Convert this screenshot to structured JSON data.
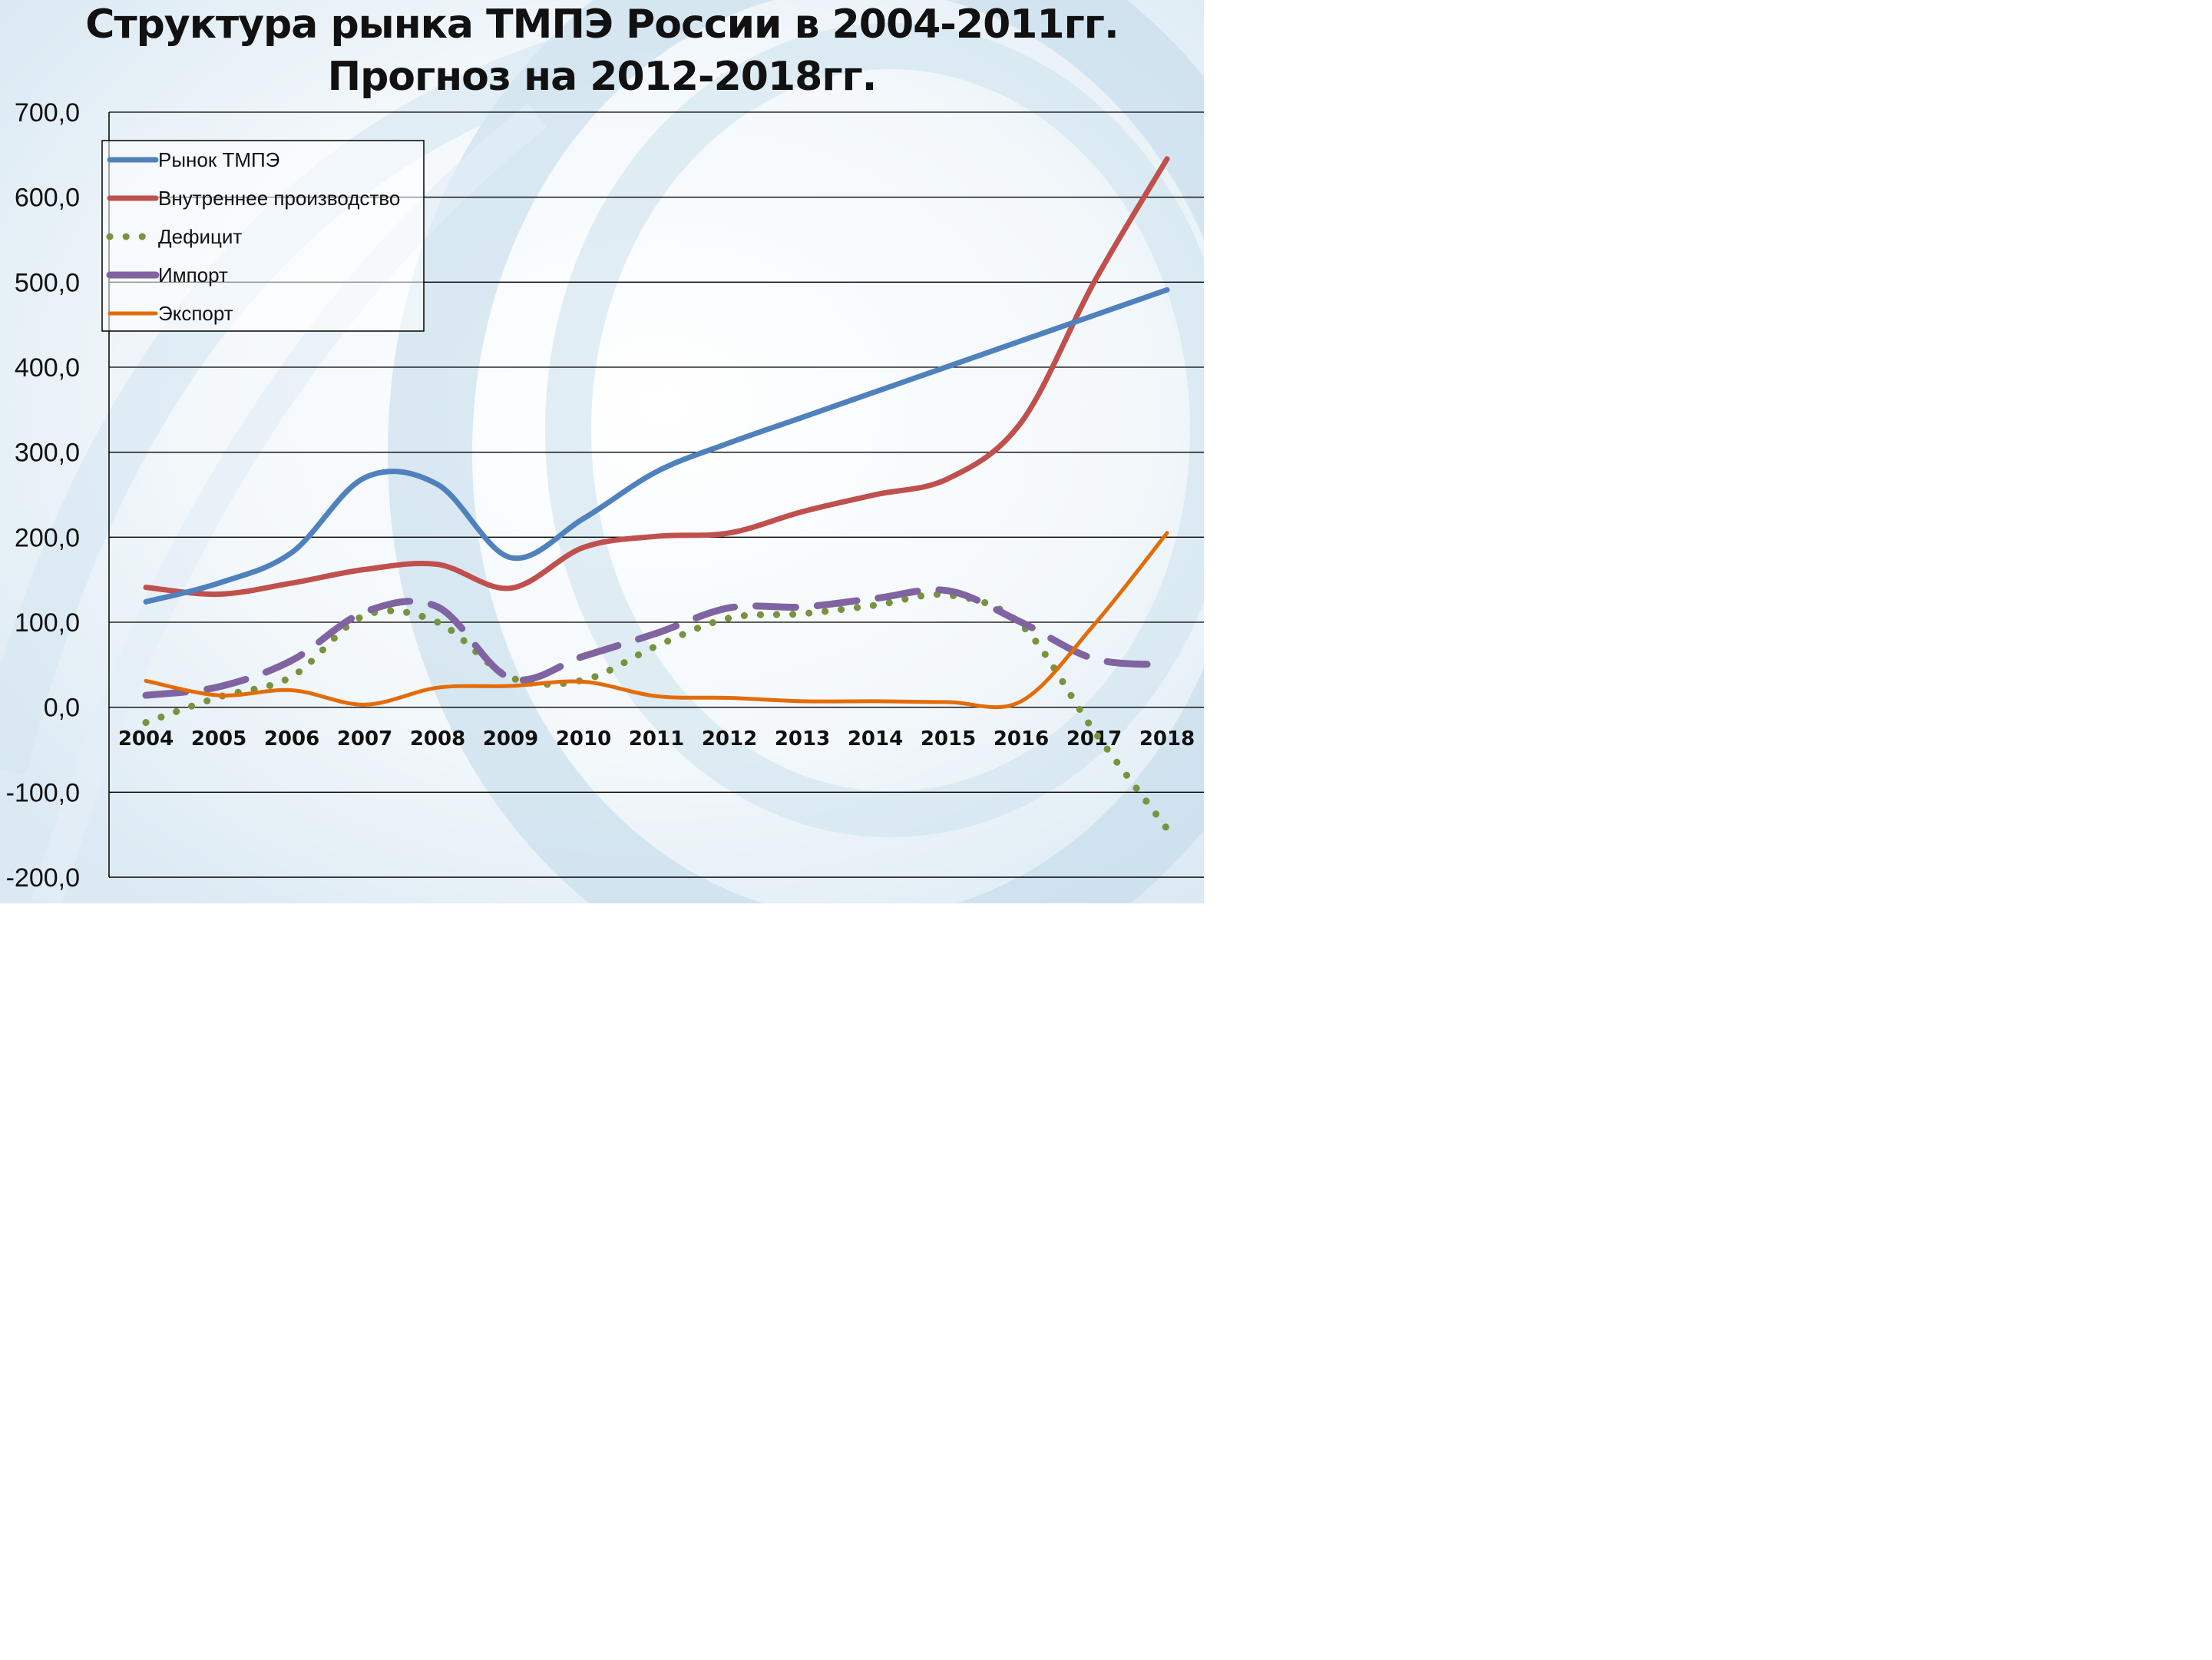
{
  "chart_data": {
    "type": "line",
    "title": "Структура рынка ТМПЭ России в 2004-2011гг.",
    "subtitle": "Прогноз на 2012-2018гг.",
    "categories": [
      "2004",
      "2005",
      "2006",
      "2007",
      "2008",
      "2009",
      "2010",
      "2011",
      "2012",
      "2013",
      "2014",
      "2015",
      "2016",
      "2017",
      "2018"
    ],
    "y_ticks": [
      "700,0",
      "600,0",
      "500,0",
      "400,0",
      "300,0",
      "200,0",
      "100,0",
      "0,0",
      "-100,0",
      "-200,0"
    ],
    "ylim": [
      -200,
      700
    ],
    "grid": true,
    "legend_position": "top-left",
    "series": [
      {
        "name": "Рынок ТМПЭ",
        "color": "#4f81bd",
        "style": "solid",
        "values": [
          124,
          146,
          182,
          270,
          262,
          176,
          222,
          277,
          311,
          341,
          371,
          401,
          431,
          461,
          491
        ]
      },
      {
        "name": "Внутреннее производство",
        "color": "#c0504d",
        "style": "solid",
        "values": [
          141,
          133,
          146,
          162,
          168,
          140,
          188,
          201,
          205,
          230,
          250,
          269,
          335,
          500,
          645
        ]
      },
      {
        "name": "Дефицит",
        "color": "#77933c",
        "style": "dotted",
        "values": [
          -18,
          12,
          36,
          108,
          100,
          35,
          32,
          72,
          105,
          110,
          120,
          132,
          97,
          -28,
          -143
        ]
      },
      {
        "name": "Импорт",
        "color": "#8064a2",
        "style": "dashed",
        "values": [
          14,
          24,
          55,
          112,
          118,
          34,
          60,
          87,
          117,
          118,
          128,
          137,
          100,
          57,
          50
        ]
      },
      {
        "name": "Экспорт",
        "color": "#e36c09",
        "style": "solid",
        "values": [
          31,
          14,
          20,
          3,
          23,
          25,
          30,
          13,
          11,
          7,
          7,
          6,
          7,
          97,
          205
        ]
      }
    ]
  }
}
